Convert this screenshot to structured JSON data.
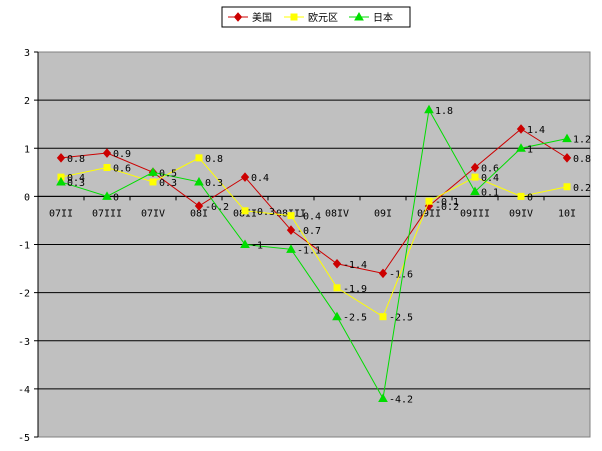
{
  "chart_data": {
    "type": "line",
    "title": "",
    "xlabel": "",
    "ylabel": "",
    "ylim": [
      -5,
      3
    ],
    "yticks": [
      3,
      2,
      1,
      0,
      -1,
      -2,
      -3,
      -4,
      -5
    ],
    "grid": true,
    "legend_position": "top-center",
    "categories": [
      "07II",
      "07III",
      "07IV",
      "08I",
      "08II",
      "08III",
      "08IV",
      "09I",
      "09II",
      "09III",
      "09IV",
      "10I"
    ],
    "series": [
      {
        "name": "美国",
        "color": "#cc0000",
        "marker": "diamond",
        "values": [
          0.8,
          0.9,
          0.5,
          -0.2,
          0.4,
          -0.7,
          -1.4,
          -1.6,
          -0.2,
          0.6,
          1.4,
          0.8
        ]
      },
      {
        "name": "欧元区",
        "color": "#ffff00",
        "marker": "square",
        "values": [
          0.4,
          0.6,
          0.3,
          0.8,
          -0.3,
          -0.4,
          -1.9,
          -2.5,
          -0.1,
          0.4,
          0.0,
          0.2
        ]
      },
      {
        "name": "日本",
        "color": "#00dd00",
        "marker": "triangle",
        "values": [
          0.3,
          0.0,
          0.5,
          0.3,
          -1.0,
          -1.1,
          -2.5,
          -4.2,
          1.8,
          0.1,
          1.0,
          1.2
        ]
      }
    ],
    "data_labels": {
      "美国": [
        "0.8",
        "0.9",
        "",
        "-0.2",
        "0.4",
        "-0.7",
        "-1.4",
        "-1.6",
        "-0.2",
        "0.6",
        "1.4",
        "0.8"
      ],
      "欧元区": [
        "0.4",
        "0.6",
        "0.3",
        "0.8",
        "-0.3",
        "-0.4",
        "-1.9",
        "-2.5",
        "-0.1",
        "0.4",
        "0",
        "0.2"
      ],
      "日本": [
        "0.3",
        "0",
        "0.5",
        "0.3",
        "-1",
        "-1.1",
        "-2.5",
        "-4.2",
        "1.8",
        "0.1",
        "1",
        "1.2"
      ]
    }
  }
}
